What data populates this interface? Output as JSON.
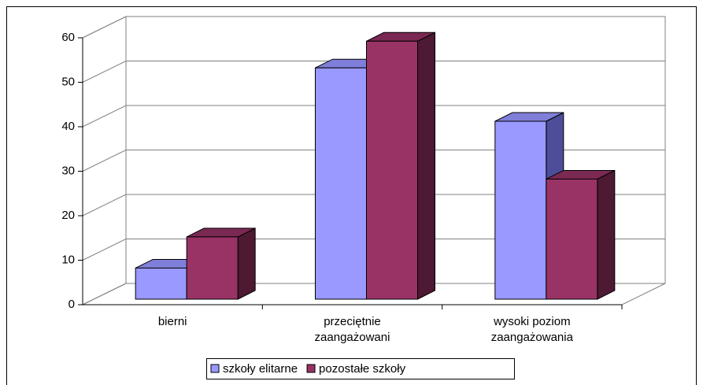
{
  "chart_data": {
    "type": "bar3d",
    "categories": [
      "bierni",
      "przeciętnie\nzaangażowani",
      "wysoki poziom\nzaangażowania"
    ],
    "series": [
      {
        "name": "szkoły elitarne",
        "color": "#9999ff",
        "side": "#4d4d99",
        "top": "#7f7fd9",
        "values": [
          7,
          52,
          40
        ]
      },
      {
        "name": "pozostałe szkoły",
        "color": "#993366",
        "side": "#4d1933",
        "top": "#7a2952",
        "values": [
          14,
          58,
          27
        ]
      }
    ],
    "ylim": [
      0,
      60
    ],
    "yticks": [
      0,
      10,
      20,
      30,
      40,
      50,
      60
    ],
    "grid": true,
    "legend": "bottom"
  }
}
